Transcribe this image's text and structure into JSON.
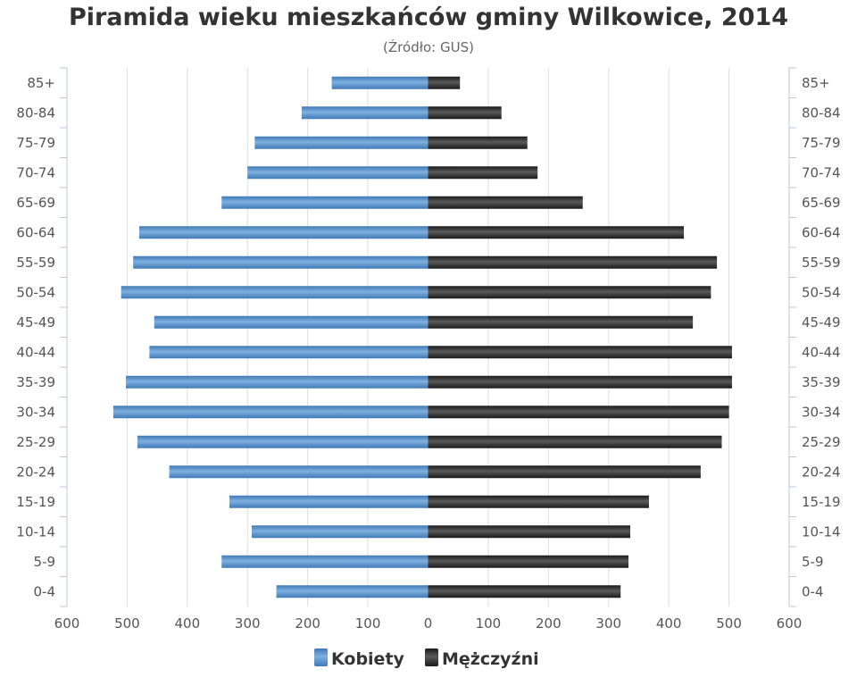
{
  "title": "Piramida wieku mieszkańców gminy Wilkowice, 2014",
  "subtitle": "(Źródło: GUS)",
  "colors": {
    "female": "#3f79b6",
    "female_light": "#7fb0e0",
    "male": "#1a1a1a",
    "male_light": "#5a5a5a",
    "grid": "#dddddd",
    "axis": "#b7c7d8"
  },
  "chart_data": {
    "type": "bar",
    "orientation": "horizontal-pyramid",
    "categories": [
      "85+",
      "80-84",
      "75-79",
      "70-74",
      "65-69",
      "60-64",
      "55-59",
      "50-54",
      "45-49",
      "40-44",
      "35-39",
      "30-34",
      "25-29",
      "20-24",
      "15-19",
      "10-14",
      "5-9",
      "0-4"
    ],
    "series": [
      {
        "name": "Kobiety",
        "side": "left",
        "values": [
          160,
          210,
          288,
          300,
          343,
          480,
          490,
          510,
          455,
          463,
          502,
          523,
          483,
          430,
          330,
          293,
          343,
          252
        ]
      },
      {
        "name": "Mężczyźni",
        "side": "right",
        "values": [
          53,
          122,
          165,
          182,
          257,
          425,
          480,
          470,
          440,
          505,
          505,
          500,
          488,
          453,
          367,
          336,
          333,
          320
        ]
      }
    ],
    "x_ticks": [
      "600",
      "500",
      "400",
      "300",
      "200",
      "100",
      "0",
      "100",
      "200",
      "300",
      "400",
      "500",
      "600"
    ],
    "xlim": [
      -600,
      600
    ],
    "grid": true,
    "legend": "bottom-center"
  }
}
